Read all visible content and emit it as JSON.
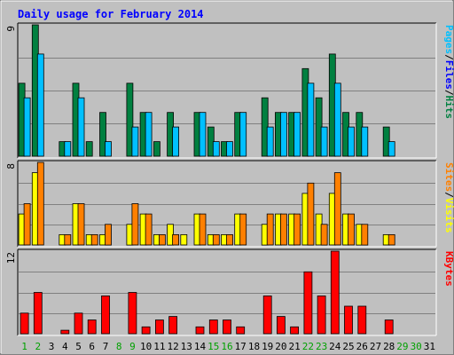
{
  "chart_data": [
    {
      "type": "bar",
      "panel": "hits-files-pages",
      "title": "Daily usage for February 2014",
      "categories": [
        "1",
        "2",
        "3",
        "4",
        "5",
        "6",
        "7",
        "8",
        "9",
        "10",
        "11",
        "12",
        "13",
        "14",
        "15",
        "16",
        "17",
        "18",
        "19",
        "20",
        "21",
        "22",
        "23",
        "24",
        "25",
        "26",
        "27",
        "28",
        "29",
        "30",
        "31"
      ],
      "weekend_days": [
        "1",
        "2",
        "8",
        "9",
        "15",
        "16",
        "22",
        "23",
        "29",
        "30"
      ],
      "ymax_label": "9",
      "ylim": [
        0,
        9
      ],
      "grid": true,
      "series": [
        {
          "name": "Hits",
          "color": "#008040",
          "values": [
            5,
            9,
            0,
            1,
            5,
            1,
            3,
            0,
            5,
            3,
            1,
            3,
            0,
            3,
            2,
            1,
            3,
            0,
            4,
            3,
            3,
            6,
            4,
            7,
            3,
            3,
            0,
            2,
            0,
            0,
            0
          ]
        },
        {
          "name": "Files",
          "color": "#00c0ff",
          "values": [
            4,
            7,
            0,
            1,
            4,
            0,
            1,
            0,
            2,
            3,
            0,
            2,
            0,
            3,
            1,
            1,
            3,
            0,
            2,
            3,
            3,
            5,
            2,
            5,
            2,
            2,
            0,
            1,
            0,
            0,
            0
          ]
        }
      ],
      "ylabel_parts": [
        {
          "text": "Pages",
          "color": "#00c0ff"
        },
        {
          "text": "/",
          "color": "#000000"
        },
        {
          "text": "Files",
          "color": "#0000ff"
        },
        {
          "text": "/",
          "color": "#000000"
        },
        {
          "text": "Hits",
          "color": "#008040"
        }
      ]
    },
    {
      "type": "bar",
      "panel": "visits-sites",
      "ymax_label": "8",
      "ylim": [
        0,
        8
      ],
      "grid": true,
      "series": [
        {
          "name": "Visits",
          "color": "#ffff00",
          "values": [
            3,
            7,
            0,
            1,
            4,
            1,
            1,
            0,
            2,
            3,
            1,
            2,
            1,
            3,
            1,
            1,
            3,
            0,
            2,
            3,
            3,
            5,
            3,
            5,
            3,
            2,
            0,
            1,
            0,
            0,
            0
          ]
        },
        {
          "name": "Sites",
          "color": "#ff8000",
          "values": [
            4,
            8,
            0,
            1,
            4,
            1,
            2,
            0,
            4,
            3,
            1,
            1,
            0,
            3,
            1,
            1,
            3,
            0,
            3,
            3,
            3,
            6,
            2,
            7,
            3,
            2,
            0,
            1,
            0,
            0,
            0
          ]
        }
      ],
      "ylabel_parts": [
        {
          "text": "Sites",
          "color": "#ff8000"
        },
        {
          "text": "/",
          "color": "#000000"
        },
        {
          "text": "Visits",
          "color": "#ffff00"
        }
      ]
    },
    {
      "type": "bar",
      "panel": "kbytes",
      "ymax_label": "12",
      "ylim": [
        0,
        12
      ],
      "grid": true,
      "series": [
        {
          "name": "KBytes",
          "color": "#ff0000",
          "values": [
            3,
            6,
            0,
            0.5,
            3,
            2,
            5.5,
            0,
            6,
            1,
            2,
            2.5,
            0,
            1,
            2,
            2,
            1,
            0,
            5.5,
            2.5,
            1,
            9,
            5.5,
            12,
            4,
            4,
            0,
            2,
            0,
            0,
            0
          ]
        }
      ],
      "ylabel_parts": [
        {
          "text": "KBytes",
          "color": "#ff0000"
        }
      ]
    }
  ]
}
